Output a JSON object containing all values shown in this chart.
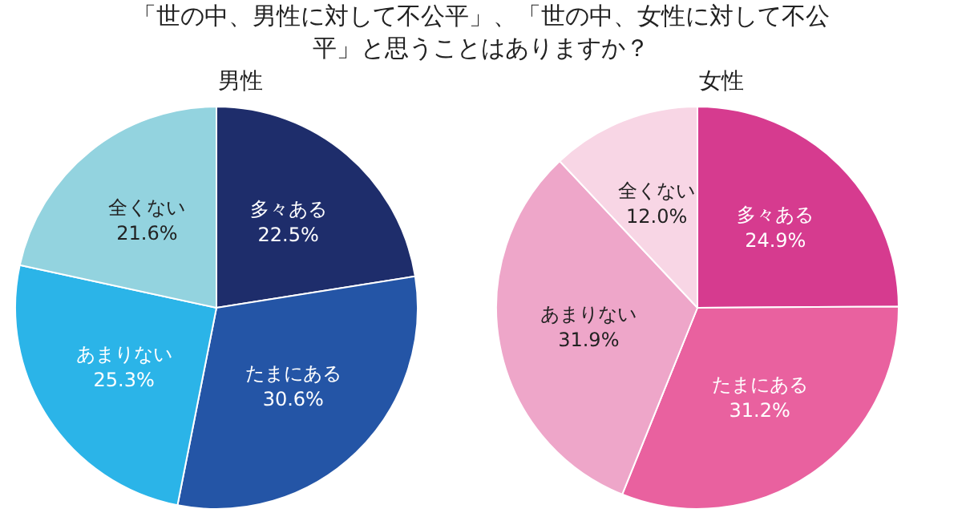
{
  "chart_data": [
    {
      "type": "other",
      "title": "「世の中、男性に対して不公平」、「世の中、女性に対して不公平」と思うことはありますか？"
    },
    {
      "type": "pie",
      "title": "男性",
      "categories": [
        "多々ある",
        "たまにある",
        "あまりない",
        "全くない"
      ],
      "values": [
        22.5,
        30.6,
        25.3,
        21.6
      ],
      "colors": [
        "#1e2d6b",
        "#2455a6",
        "#2bb4e8",
        "#93d3df"
      ],
      "value_labels": [
        "22.5%",
        "30.6%",
        "25.3%",
        "21.6%"
      ],
      "legend": false
    },
    {
      "type": "pie",
      "title": "女性",
      "categories": [
        "多々ある",
        "たまにある",
        "あまりない",
        "全くない"
      ],
      "values": [
        24.9,
        31.2,
        31.9,
        12.0
      ],
      "colors": [
        "#d63b8f",
        "#e9619f",
        "#eea6c9",
        "#f8d6e5"
      ],
      "value_labels": [
        "24.9%",
        "31.2%",
        "31.9%",
        "12.0%"
      ],
      "legend": false
    }
  ]
}
